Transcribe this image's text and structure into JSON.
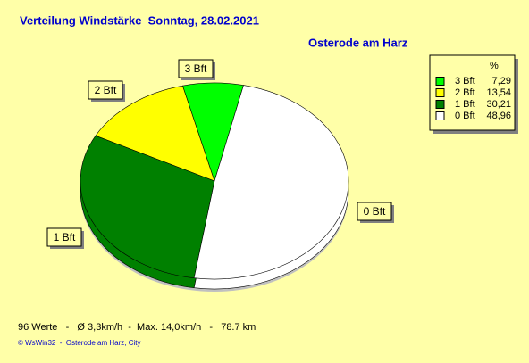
{
  "chart_data": {
    "type": "pie",
    "title": "Verteilung Windstärke  Sonntag, 28.02.2021",
    "subtitle": "Osterode am Harz",
    "legend_header": "%",
    "categories": [
      "3 Bft",
      "2 Bft",
      "1 Bft",
      "0 Bft"
    ],
    "values": [
      7.29,
      13.54,
      30.21,
      48.96
    ],
    "value_labels": [
      "7,29",
      "13,54",
      "30,21",
      "48,96"
    ],
    "colors": [
      "#00ff00",
      "#ffff00",
      "#008000",
      "#ffffff"
    ],
    "legend": "upper right",
    "footer": "96 Werte   -   Ø 3,3km/h  -  Max. 14,0km/h   -   78.7 km",
    "credit": "© WsWin32  -  Osterode am Harz, City"
  }
}
